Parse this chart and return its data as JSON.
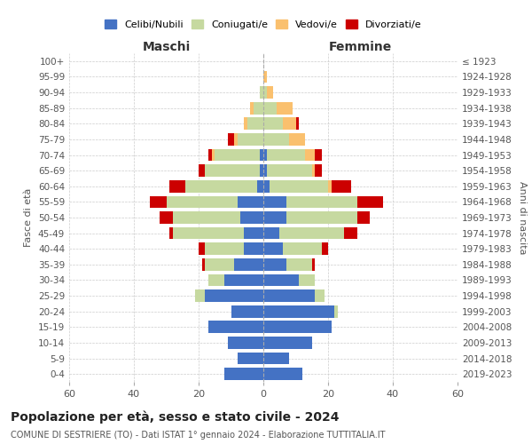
{
  "age_groups": [
    "0-4",
    "5-9",
    "10-14",
    "15-19",
    "20-24",
    "25-29",
    "30-34",
    "35-39",
    "40-44",
    "45-49",
    "50-54",
    "55-59",
    "60-64",
    "65-69",
    "70-74",
    "75-79",
    "80-84",
    "85-89",
    "90-94",
    "95-99",
    "100+"
  ],
  "birth_years": [
    "2019-2023",
    "2014-2018",
    "2009-2013",
    "2004-2008",
    "1999-2003",
    "1994-1998",
    "1989-1993",
    "1984-1988",
    "1979-1983",
    "1974-1978",
    "1969-1973",
    "1964-1968",
    "1959-1963",
    "1954-1958",
    "1949-1953",
    "1944-1948",
    "1939-1943",
    "1934-1938",
    "1929-1933",
    "1924-1928",
    "≤ 1923"
  ],
  "male_celibi": [
    12,
    8,
    11,
    17,
    10,
    18,
    12,
    9,
    6,
    6,
    7,
    8,
    2,
    1,
    1,
    0,
    0,
    0,
    0,
    0,
    0
  ],
  "male_coniugati": [
    0,
    0,
    0,
    0,
    0,
    3,
    5,
    9,
    12,
    22,
    21,
    22,
    22,
    17,
    14,
    8,
    5,
    3,
    1,
    0,
    0
  ],
  "male_vedovi": [
    0,
    0,
    0,
    0,
    0,
    0,
    0,
    0,
    0,
    0,
    0,
    0,
    0,
    0,
    1,
    1,
    1,
    1,
    0,
    0,
    0
  ],
  "male_divorziati": [
    0,
    0,
    0,
    0,
    0,
    0,
    0,
    1,
    2,
    1,
    4,
    5,
    5,
    2,
    1,
    2,
    0,
    0,
    0,
    0,
    0
  ],
  "female_celibi": [
    12,
    8,
    15,
    21,
    22,
    16,
    11,
    7,
    6,
    5,
    7,
    7,
    2,
    1,
    1,
    0,
    0,
    0,
    0,
    0,
    0
  ],
  "female_coniugati": [
    0,
    0,
    0,
    0,
    1,
    3,
    5,
    8,
    12,
    20,
    22,
    22,
    18,
    14,
    12,
    8,
    6,
    4,
    1,
    0,
    0
  ],
  "female_vedovi": [
    0,
    0,
    0,
    0,
    0,
    0,
    0,
    0,
    0,
    0,
    0,
    0,
    1,
    1,
    3,
    5,
    4,
    5,
    2,
    1,
    0
  ],
  "female_divorziati": [
    0,
    0,
    0,
    0,
    0,
    0,
    0,
    1,
    2,
    4,
    4,
    8,
    6,
    2,
    2,
    0,
    1,
    0,
    0,
    0,
    0
  ],
  "color_celibi": "#4472c4",
  "color_coniugati": "#c6d9a0",
  "color_vedovi": "#fac06e",
  "color_divorziati": "#cc0000",
  "xlim": 60,
  "title": "Popolazione per età, sesso e stato civile - 2024",
  "subtitle": "COMUNE DI SESTRIERE (TO) - Dati ISTAT 1° gennaio 2024 - Elaborazione TUTTITALIA.IT",
  "ylabel_left": "Fasce di età",
  "ylabel_right": "Anni di nascita",
  "xlabel_left": "Maschi",
  "xlabel_right": "Femmine"
}
